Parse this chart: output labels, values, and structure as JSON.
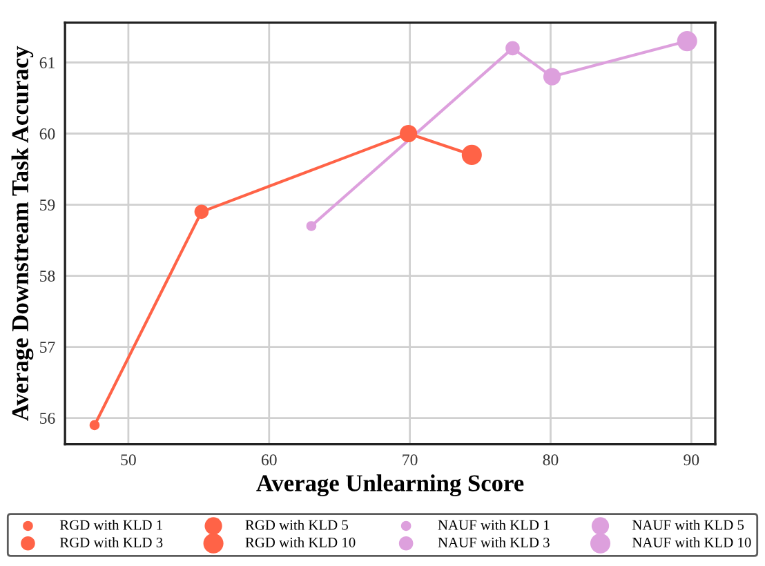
{
  "chart_data": {
    "type": "bubble",
    "xlabel": "Average Unlearning Score",
    "ylabel": "Average Downstream Task Accuracy",
    "xlim": [
      45.5,
      91.7
    ],
    "ylim": [
      55.63,
      61.56
    ],
    "xticks": [
      50,
      60,
      70,
      80,
      90
    ],
    "yticks": [
      56,
      57,
      58,
      59,
      60,
      61
    ],
    "grid": true,
    "legend": "bottom",
    "marker": "circle",
    "series": [
      {
        "type": "line",
        "marker": "none",
        "color": "#ff6347",
        "x": [
          47.6,
          55.2,
          69.9,
          74.4
        ],
        "values": [
          55.9,
          58.9,
          60.0,
          59.7
        ]
      },
      {
        "type": "line",
        "marker": "none",
        "color": "#dda0dd",
        "x": [
          63.0,
          77.3,
          80.1,
          89.7
        ],
        "values": [
          58.7,
          61.2,
          60.8,
          61.3
        ]
      },
      {
        "name": "RGD with KLD 1",
        "color": "#ff6347",
        "x": [
          47.6
        ],
        "values": [
          55.9
        ],
        "sizes": [
          0.25
        ]
      },
      {
        "name": "RGD with KLD 3",
        "color": "#ff6347",
        "x": [
          55.2
        ],
        "values": [
          58.9
        ],
        "sizes": [
          0.5
        ]
      },
      {
        "name": "RGD with KLD 5",
        "color": "#ff6347",
        "x": [
          69.9
        ],
        "values": [
          60.0
        ],
        "sizes": [
          0.75
        ]
      },
      {
        "name": "RGD with KLD 10",
        "color": "#ff6347",
        "x": [
          74.4
        ],
        "values": [
          59.7
        ],
        "sizes": [
          1
        ]
      },
      {
        "name": "NAUF with KLD 1",
        "color": "#dda0dd",
        "x": [
          63.0
        ],
        "values": [
          58.7
        ],
        "sizes": [
          0.25
        ]
      },
      {
        "name": "NAUF with KLD 3",
        "color": "#dda0dd",
        "x": [
          77.3
        ],
        "values": [
          61.2
        ],
        "sizes": [
          0.5
        ]
      },
      {
        "name": "NAUF with KLD 5",
        "color": "#dda0dd",
        "x": [
          80.1
        ],
        "values": [
          60.8
        ],
        "sizes": [
          0.75
        ]
      },
      {
        "name": "NAUF with KLD 10",
        "color": "#dda0dd",
        "x": [
          89.7
        ],
        "values": [
          61.3
        ],
        "sizes": [
          1
        ]
      }
    ]
  }
}
